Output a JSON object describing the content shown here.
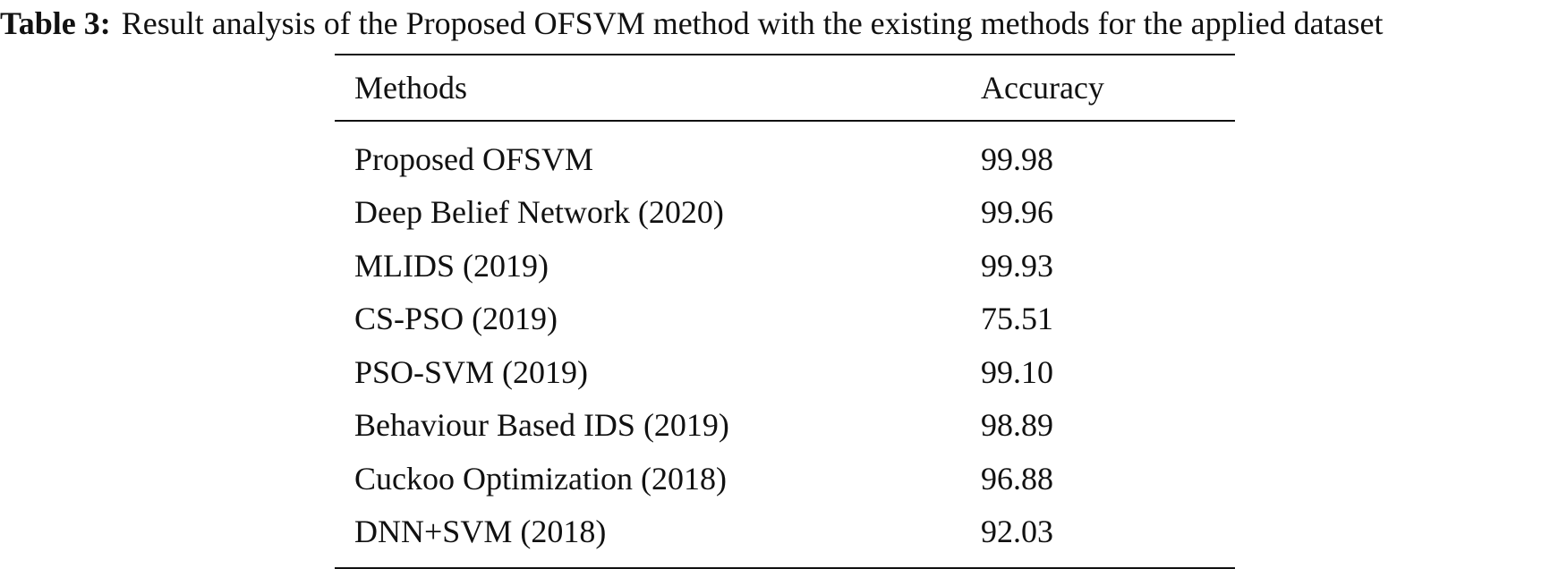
{
  "caption": {
    "label": "Table 3:",
    "text": "Result analysis of the Proposed OFSVM method with the existing methods for the applied dataset"
  },
  "table": {
    "headers": [
      "Methods",
      "Accuracy"
    ],
    "rows": [
      [
        "Proposed OFSVM",
        "99.98"
      ],
      [
        "Deep Belief Network (2020)",
        "99.96"
      ],
      [
        "MLIDS (2019)",
        "99.93"
      ],
      [
        "CS-PSO (2019)",
        "75.51"
      ],
      [
        "PSO-SVM (2019)",
        "99.10"
      ],
      [
        "Behaviour Based IDS (2019)",
        "98.89"
      ],
      [
        "Cuckoo Optimization (2018)",
        "96.88"
      ],
      [
        "DNN+SVM (2018)",
        "92.03"
      ]
    ]
  }
}
